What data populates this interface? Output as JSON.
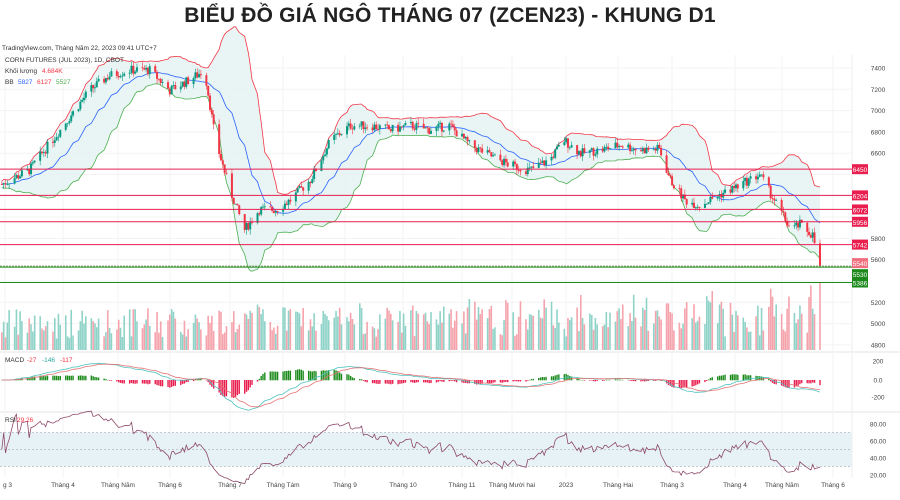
{
  "title": "BIỂU ĐỒ GIÁ NGÔ THÁNG 07 (ZCEN23) - KHUNG D1",
  "source_line": "TradingView.com, Tháng Năm 22, 2023 09:41 UTC+7",
  "legend": {
    "symbol": "CORN FUTURES (JUL 2023), 1D, CBOT",
    "volume_label": "Khối lượng",
    "volume_value": "4.684K",
    "bb_label": "BB",
    "bb_basis": "5827",
    "bb_upper": "6127",
    "bb_lower": "5527",
    "macd_label": "MACD",
    "macd_hist": "-27",
    "macd_line": "-146",
    "macd_signal": "-117",
    "rsi_label": "RSI",
    "rsi_value": "29.26"
  },
  "colors": {
    "up": "#089981",
    "down": "#f23645",
    "bb_basis": "#2962ff",
    "bb_upper": "#f23645",
    "bb_lower": "#4caf50",
    "level_red": "#e91e4f",
    "level_green": "#1b8a1b",
    "rsi": "#8e4a6a"
  },
  "chart_data": {
    "type": "candlestick",
    "price_axis_ticks": [
      "7400",
      "7200",
      "7000",
      "6800",
      "6600",
      "5800",
      "5600",
      "5200",
      "5000",
      "4800"
    ],
    "price_range": [
      4800,
      7400
    ],
    "macd_ticks": [
      "200",
      "0.0",
      "-200"
    ],
    "rsi_ticks": [
      "80.00",
      "60.00",
      "40.00",
      "20.00"
    ],
    "rsi_band": [
      30,
      70
    ],
    "time_labels": [
      "g 3",
      "Tháng 4",
      "Tháng Năm",
      "Tháng 6",
      "Tháng 7",
      "Tháng Tám",
      "Tháng 9",
      "Tháng 10",
      "Tháng 11",
      "Tháng Mười hai",
      "2023",
      "Tháng Hai",
      "Tháng 3",
      "Tháng 4",
      "Tháng Năm",
      "Tháng 6"
    ],
    "levels": [
      {
        "value": "6450",
        "color": "red"
      },
      {
        "value": "6204",
        "color": "red"
      },
      {
        "value": "6072",
        "color": "red"
      },
      {
        "value": "5956",
        "color": "red"
      },
      {
        "value": "5742",
        "color": "red"
      },
      {
        "value": "5540",
        "color": "lightred"
      },
      {
        "value": "5530",
        "color": "green"
      },
      {
        "value": "5386",
        "color": "green"
      }
    ],
    "closes": [
      [
        "2022-02-27",
        6300
      ],
      [
        "2022-03-15",
        6440
      ],
      [
        "2022-04-01",
        6820
      ],
      [
        "2022-04-17",
        7190
      ],
      [
        "2022-04-28",
        7330
      ],
      [
        "2022-05-09",
        7380
      ],
      [
        "2022-05-20",
        7380
      ],
      [
        "2022-05-31",
        7190
      ],
      [
        "2022-06-11",
        7290
      ],
      [
        "2022-06-19",
        7380
      ],
      [
        "2022-06-25",
        6720
      ],
      [
        "2022-07-03",
        6250
      ],
      [
        "2022-07-11",
        5880
      ],
      [
        "2022-07-19",
        6070
      ],
      [
        "2022-07-28",
        6070
      ],
      [
        "2022-08-05",
        6160
      ],
      [
        "2022-08-16",
        6350
      ],
      [
        "2022-08-27",
        6720
      ],
      [
        "2022-09-07",
        6860
      ],
      [
        "2022-09-18",
        6860
      ],
      [
        "2022-09-29",
        6820
      ],
      [
        "2022-10-10",
        6860
      ],
      [
        "2022-10-20",
        6820
      ],
      [
        "2022-10-31",
        6860
      ],
      [
        "2022-11-11",
        6680
      ],
      [
        "2022-11-22",
        6580
      ],
      [
        "2022-12-03",
        6490
      ],
      [
        "2022-12-14",
        6440
      ],
      [
        "2022-12-25",
        6540
      ],
      [
        "2023-01-02",
        6720
      ],
      [
        "2023-01-11",
        6600
      ],
      [
        "2023-01-22",
        6630
      ],
      [
        "2023-02-02",
        6680
      ],
      [
        "2023-02-12",
        6630
      ],
      [
        "2023-02-23",
        6640
      ],
      [
        "2023-03-01",
        6350
      ],
      [
        "2023-03-09",
        6160
      ],
      [
        "2023-03-17",
        6110
      ],
      [
        "2023-03-28",
        6210
      ],
      [
        "2023-04-08",
        6300
      ],
      [
        "2023-04-19",
        6400
      ],
      [
        "2023-04-27",
        6160
      ],
      [
        "2023-05-06",
        5880
      ],
      [
        "2023-05-11",
        5930
      ],
      [
        "2023-05-18",
        5830
      ],
      [
        "2023-05-22",
        5540
      ]
    ]
  }
}
